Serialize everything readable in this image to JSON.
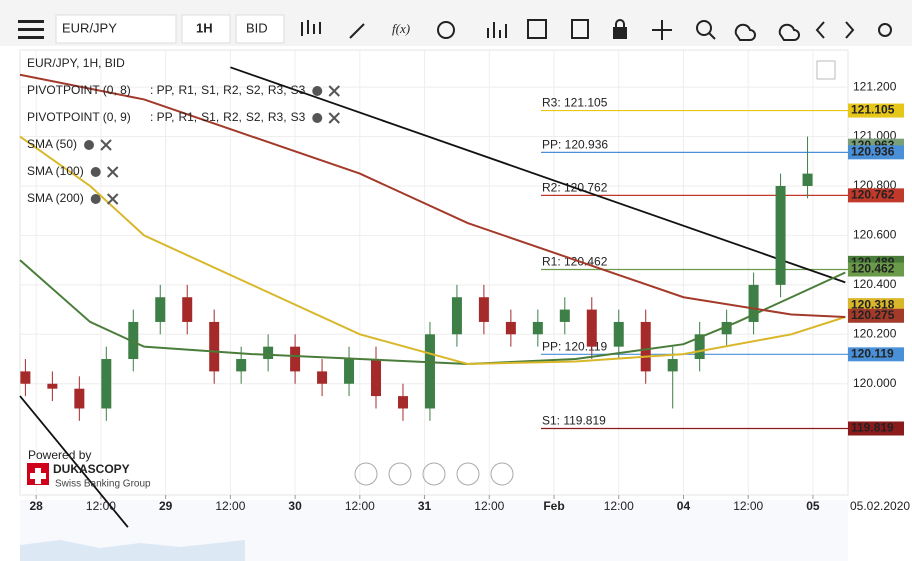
{
  "toolbar": {
    "symbol": "EUR/JPY",
    "interval": "1H",
    "side": "BID",
    "fx": "f(x)"
  },
  "legend": {
    "title": "EUR/JPY, 1H, BID",
    "pivots": [
      {
        "name": "PIVOTPOINT (0, 8)",
        "items": [
          {
            "text": ": PP,",
            "color": "#4a90d9"
          },
          {
            "text": "R1,",
            "color": "#5a8a3a"
          },
          {
            "text": "S1,",
            "color": "#b03030"
          },
          {
            "text": "R2,",
            "color": "#c0392b"
          },
          {
            "text": "S2,",
            "color": "#e0a020"
          },
          {
            "text": "R3,",
            "color": "#d4b010"
          },
          {
            "text": "S3",
            "color": "#e6c619"
          }
        ]
      },
      {
        "name": "PIVOTPOINT (0, 9)",
        "items": [
          {
            "text": ": PP,",
            "color": "#4a90d9"
          },
          {
            "text": "R1,",
            "color": "#5a8a3a"
          },
          {
            "text": "S1,",
            "color": "#b03030"
          },
          {
            "text": "R2,",
            "color": "#c0392b"
          },
          {
            "text": "S2,",
            "color": "#e0a020"
          },
          {
            "text": "R3,",
            "color": "#d4b010"
          },
          {
            "text": "S3",
            "color": "#e6c619"
          }
        ]
      }
    ]
  },
  "branding": {
    "powered": "Powered by",
    "brand": "DUKASCOPY",
    "tagline": "Swiss Banking Group"
  },
  "chart_data": {
    "type": "candlestick",
    "x": [
      -2,
      3,
      8,
      13,
      18,
      23,
      28,
      33,
      38,
      43,
      48,
      53,
      58,
      63,
      68,
      73,
      78,
      83,
      88,
      93,
      98,
      103,
      108,
      113,
      118,
      123,
      128,
      133,
      138,
      143
    ],
    "open": [
      120.05,
      120.0,
      119.98,
      119.9,
      120.1,
      120.25,
      120.35,
      120.25,
      120.05,
      120.1,
      120.15,
      120.05,
      120.0,
      120.1,
      119.95,
      119.9,
      120.2,
      120.35,
      120.25,
      120.2,
      120.25,
      120.3,
      120.15,
      120.25,
      120.05,
      120.1,
      120.2,
      120.25,
      120.4,
      120.8
    ],
    "high": [
      120.1,
      120.05,
      120.03,
      120.15,
      120.3,
      120.4,
      120.4,
      120.3,
      120.15,
      120.2,
      120.2,
      120.1,
      120.15,
      120.15,
      120.0,
      120.25,
      120.4,
      120.4,
      120.3,
      120.3,
      120.35,
      120.35,
      120.3,
      120.3,
      120.15,
      120.25,
      120.3,
      120.45,
      120.85,
      121.0
    ],
    "low": [
      119.95,
      119.93,
      119.85,
      119.85,
      120.05,
      120.2,
      120.2,
      120.0,
      120.0,
      120.05,
      120.0,
      119.95,
      119.95,
      119.9,
      119.85,
      119.85,
      120.15,
      120.2,
      120.15,
      120.15,
      120.2,
      120.1,
      120.1,
      120.0,
      119.9,
      120.05,
      120.15,
      120.2,
      120.35,
      120.75
    ],
    "close": [
      120.0,
      119.98,
      119.9,
      120.1,
      120.25,
      120.35,
      120.25,
      120.05,
      120.1,
      120.15,
      120.05,
      120.0,
      120.1,
      119.95,
      119.9,
      120.2,
      120.35,
      120.25,
      120.2,
      120.25,
      120.3,
      120.15,
      120.25,
      120.05,
      120.1,
      120.2,
      120.25,
      120.4,
      120.8,
      120.85
    ],
    "up_color": "#3d7f46",
    "down_color": "#a52a2a",
    "series": [
      {
        "name": "SMA (50)",
        "color": "#4a7d3a",
        "x": [
          -3,
          10,
          20,
          40,
          60,
          80,
          100,
          120,
          130,
          140,
          150
        ],
        "values": [
          120.5,
          120.25,
          120.15,
          120.12,
          120.1,
          120.08,
          120.1,
          120.16,
          120.25,
          120.35,
          120.45
        ]
      },
      {
        "name": "SMA (100)",
        "color": "#d9b72a",
        "x": [
          -3,
          10,
          20,
          40,
          60,
          80,
          100,
          120,
          140,
          150
        ],
        "values": [
          121.0,
          120.8,
          120.6,
          120.4,
          120.2,
          120.08,
          120.09,
          120.12,
          120.2,
          120.27
        ]
      },
      {
        "name": "SMA (200)",
        "color": "#a33a2a",
        "x": [
          -3,
          20,
          40,
          60,
          80,
          100,
          120,
          140,
          150
        ],
        "values": [
          121.25,
          121.15,
          121.0,
          120.85,
          120.65,
          120.5,
          120.35,
          120.28,
          120.27
        ]
      }
    ],
    "trendlines": [
      {
        "color": "#111111",
        "x": [
          36,
          150
        ],
        "values": [
          121.28,
          120.41
        ]
      },
      {
        "color": "#111111",
        "x": [
          -3,
          17
        ],
        "values": [
          119.95,
          119.42
        ]
      }
    ],
    "levels": [
      {
        "label": "R3: 121.105",
        "value": 121.105,
        "color": "#e6c619"
      },
      {
        "label": "PP: 120.936",
        "value": 120.936,
        "color": "#4a90d9"
      },
      {
        "label": "R2: 120.762",
        "value": 120.762,
        "color": "#c0392b"
      },
      {
        "label": "R1: 120.462",
        "value": 120.462,
        "color": "#6a9a4a"
      },
      {
        "label": "PP: 120.119",
        "value": 120.119,
        "color": "#4a90d9"
      },
      {
        "label": "S1: 119.819",
        "value": 119.819,
        "color": "#8b1a1a"
      }
    ],
    "price_tags": [
      {
        "value": 121.105,
        "color": "#e6c619"
      },
      {
        "value": 120.963,
        "color": "#7aa07a"
      },
      {
        "value": 120.936,
        "color": "#4a90d9"
      },
      {
        "value": 120.762,
        "color": "#c0392b"
      },
      {
        "value": 120.489,
        "color": "#4a7d3a"
      },
      {
        "value": 120.462,
        "color": "#6a9a4a"
      },
      {
        "value": 120.318,
        "color": "#d9b72a"
      },
      {
        "value": 120.275,
        "color": "#a33a2a"
      },
      {
        "value": 120.119,
        "color": "#4a90d9"
      },
      {
        "value": 119.819,
        "color": "#8b1a1a"
      }
    ],
    "xlim": [
      -3,
      150.5
    ],
    "ylim": [
      119.55,
      121.35
    ],
    "yticks": [
      {
        "value": 121.2,
        "label": "121.200"
      },
      {
        "value": 121.0,
        "label": "121.000"
      },
      {
        "value": 120.8,
        "label": "120.800"
      },
      {
        "value": 120.6,
        "label": "120.600"
      },
      {
        "value": 120.4,
        "label": "120.400"
      },
      {
        "value": 120.2,
        "label": "120.200"
      },
      {
        "value": 120.0,
        "label": "120.000"
      }
    ],
    "xticks": [
      {
        "value": 0,
        "label": "28"
      },
      {
        "value": 12,
        "label": "12:00"
      },
      {
        "value": 24,
        "label": "29"
      },
      {
        "value": 36,
        "label": "12:00"
      },
      {
        "value": 48,
        "label": "30"
      },
      {
        "value": 60,
        "label": "12:00"
      },
      {
        "value": 72,
        "label": "31"
      },
      {
        "value": 84,
        "label": "12:00"
      },
      {
        "value": 96,
        "label": "Feb"
      },
      {
        "value": 108,
        "label": "12:00"
      },
      {
        "value": 120,
        "label": "04"
      },
      {
        "value": 132,
        "label": "12:00"
      },
      {
        "value": 144,
        "label": "05"
      }
    ],
    "date_stamp": "05.02.2020",
    "grid": true
  }
}
